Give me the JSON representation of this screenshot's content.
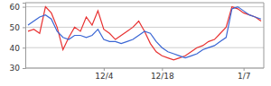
{
  "chart_data": {
    "type": "line",
    "categories": [
      null,
      null,
      null,
      null,
      null,
      null,
      null,
      null,
      null,
      null,
      null,
      null,
      null,
      "12/4",
      null,
      null,
      null,
      null,
      null,
      null,
      null,
      null,
      null,
      "12/18",
      null,
      null,
      null,
      null,
      null,
      null,
      null,
      null,
      null,
      null,
      null,
      null,
      null,
      "1/7",
      null,
      null,
      null
    ],
    "series": [
      {
        "color": "#e83232",
        "values": [
          48,
          49,
          47,
          60,
          57,
          50,
          39,
          45,
          50,
          48,
          55,
          51,
          58,
          49,
          47,
          44,
          46,
          48,
          50,
          53,
          48,
          42,
          38,
          36,
          35,
          34,
          35,
          36,
          38,
          40,
          41,
          43,
          44,
          47,
          50,
          60,
          59,
          57,
          56,
          55,
          53
        ]
      },
      {
        "color": "#3a66d4",
        "values": [
          51,
          53,
          55,
          56,
          54,
          48,
          45,
          44,
          46,
          46,
          45,
          46,
          49,
          44,
          43,
          43,
          42,
          43,
          44,
          46,
          48,
          47,
          43,
          40,
          38,
          37,
          36,
          35,
          36,
          37,
          39,
          40,
          41,
          43,
          45,
          59,
          60,
          58,
          56,
          55,
          54
        ]
      }
    ],
    "ylim": [
      30,
      62
    ],
    "yticks": [
      30,
      40,
      50,
      60
    ],
    "grid": true
  }
}
